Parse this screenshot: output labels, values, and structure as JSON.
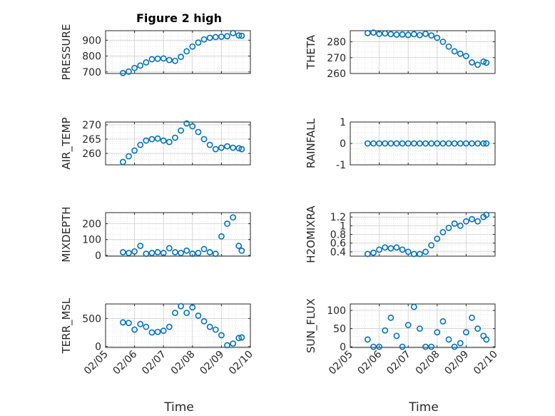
{
  "figure_title": "Figure 2 high",
  "x_axis_label": "Time",
  "x_tick_labels": [
    "02/05",
    "02/06",
    "02/07",
    "02/08",
    "02/09",
    "02/10"
  ],
  "marker_color": "#0072BD",
  "chart_data": [
    {
      "type": "scatter",
      "id": "pressure",
      "ylabel": "PRESSURE",
      "ylim": [
        690,
        960
      ],
      "yticks": [
        700,
        800,
        900
      ],
      "xlim": [
        0,
        5
      ],
      "x": [
        0.6,
        0.8,
        1.0,
        1.2,
        1.4,
        1.6,
        1.8,
        2.0,
        2.2,
        2.4,
        2.6,
        2.8,
        3.0,
        3.2,
        3.4,
        3.6,
        3.8,
        4.0,
        4.2,
        4.4,
        4.6,
        4.7
      ],
      "y": [
        693,
        702,
        725,
        740,
        760,
        780,
        783,
        785,
        775,
        770,
        795,
        830,
        860,
        885,
        905,
        915,
        920,
        922,
        925,
        945,
        930,
        928
      ]
    },
    {
      "type": "scatter",
      "id": "theta",
      "ylabel": "THETA",
      "ylim": [
        260,
        287
      ],
      "yticks": [
        260,
        270,
        280
      ],
      "xlim": [
        0,
        5
      ],
      "x": [
        0.6,
        0.8,
        1.0,
        1.2,
        1.4,
        1.6,
        1.8,
        2.0,
        2.2,
        2.4,
        2.6,
        2.8,
        3.0,
        3.2,
        3.4,
        3.6,
        3.8,
        4.0,
        4.2,
        4.4,
        4.6,
        4.7
      ],
      "y": [
        285.5,
        285.8,
        285.0,
        285.3,
        284.8,
        284.5,
        284.6,
        284.3,
        284.8,
        284.2,
        285.0,
        284.0,
        282.5,
        280.0,
        277.0,
        274.0,
        272.5,
        271.0,
        267.0,
        265.5,
        267.5,
        266.8
      ]
    },
    {
      "type": "scatter",
      "id": "air_temp",
      "ylabel": "AIR_TEMP",
      "ylim": [
        256,
        271
      ],
      "yticks": [
        260,
        265,
        270
      ],
      "xlim": [
        0,
        5
      ],
      "x": [
        0.6,
        0.8,
        1.0,
        1.2,
        1.4,
        1.6,
        1.8,
        2.0,
        2.2,
        2.4,
        2.6,
        2.8,
        3.0,
        3.2,
        3.4,
        3.6,
        3.8,
        4.0,
        4.2,
        4.4,
        4.6,
        4.7
      ],
      "y": [
        257.0,
        259.0,
        261.0,
        263.0,
        264.5,
        265.0,
        265.2,
        264.5,
        264.0,
        265.5,
        268.0,
        270.5,
        269.5,
        267.5,
        265.0,
        263.0,
        261.5,
        262.0,
        262.5,
        262.0,
        261.8,
        261.5
      ]
    },
    {
      "type": "scatter",
      "id": "rainfall",
      "ylabel": "RAINFALL",
      "ylim": [
        -1,
        1
      ],
      "yticks": [
        -1,
        0,
        1
      ],
      "xlim": [
        0,
        5
      ],
      "x": [
        0.6,
        0.8,
        1.0,
        1.2,
        1.4,
        1.6,
        1.8,
        2.0,
        2.2,
        2.4,
        2.6,
        2.8,
        3.0,
        3.2,
        3.4,
        3.6,
        3.8,
        4.0,
        4.2,
        4.4,
        4.6,
        4.7
      ],
      "y": [
        0,
        0,
        0,
        0,
        0,
        0,
        0,
        0,
        0,
        0,
        0,
        0,
        0,
        0,
        0,
        0,
        0,
        0,
        0,
        0,
        0,
        0
      ]
    },
    {
      "type": "scatter",
      "id": "mixdepth",
      "ylabel": "MIXDEPTH",
      "ylim": [
        -5,
        270
      ],
      "yticks": [
        0,
        100,
        200
      ],
      "xlim": [
        0,
        5
      ],
      "x": [
        0.6,
        0.8,
        1.0,
        1.2,
        1.4,
        1.6,
        1.8,
        2.0,
        2.2,
        2.4,
        2.6,
        2.8,
        3.0,
        3.2,
        3.4,
        3.6,
        3.8,
        4.0,
        4.2,
        4.4,
        4.6,
        4.7
      ],
      "y": [
        20,
        15,
        25,
        60,
        10,
        15,
        20,
        15,
        45,
        20,
        15,
        30,
        10,
        15,
        40,
        20,
        10,
        120,
        200,
        240,
        60,
        30
      ]
    },
    {
      "type": "scatter",
      "id": "h2omixra",
      "ylabel": "H2OMIXRA",
      "ylim": [
        0.3,
        1.3
      ],
      "yticks": [
        0.4,
        0.6,
        0.8,
        1,
        1.2
      ],
      "xlim": [
        0,
        5
      ],
      "x": [
        0.6,
        0.8,
        1.0,
        1.2,
        1.4,
        1.6,
        1.8,
        2.0,
        2.2,
        2.4,
        2.6,
        2.8,
        3.0,
        3.2,
        3.4,
        3.6,
        3.8,
        4.0,
        4.2,
        4.4,
        4.6,
        4.7
      ],
      "y": [
        0.35,
        0.38,
        0.45,
        0.5,
        0.48,
        0.5,
        0.45,
        0.4,
        0.35,
        0.35,
        0.4,
        0.55,
        0.7,
        0.85,
        0.95,
        1.05,
        1.0,
        1.1,
        1.15,
        1.1,
        1.2,
        1.25
      ]
    },
    {
      "type": "scatter",
      "id": "terr_msl",
      "ylabel": "TERR_MSL",
      "ylim": [
        -20,
        760
      ],
      "yticks": [
        0,
        500
      ],
      "xlim": [
        0,
        5
      ],
      "x": [
        0.6,
        0.8,
        1.0,
        1.2,
        1.4,
        1.6,
        1.8,
        2.0,
        2.2,
        2.4,
        2.6,
        2.8,
        3.0,
        3.2,
        3.4,
        3.6,
        3.8,
        4.0,
        4.2,
        4.4,
        4.6,
        4.7
      ],
      "y": [
        430,
        420,
        300,
        400,
        350,
        250,
        260,
        280,
        350,
        600,
        720,
        600,
        700,
        550,
        450,
        350,
        300,
        200,
        20,
        50,
        150,
        160
      ]
    },
    {
      "type": "scatter",
      "id": "sun_flux",
      "ylabel": "SUN_FLUX",
      "ylim": [
        -2,
        118
      ],
      "yticks": [
        0,
        50,
        100
      ],
      "xlim": [
        0,
        5
      ],
      "x": [
        0.6,
        0.8,
        1.0,
        1.2,
        1.4,
        1.6,
        1.8,
        2.0,
        2.2,
        2.4,
        2.6,
        2.8,
        3.0,
        3.2,
        3.4,
        3.6,
        3.8,
        4.0,
        4.2,
        4.4,
        4.6,
        4.7
      ],
      "y": [
        20,
        0,
        0,
        45,
        80,
        30,
        0,
        60,
        110,
        50,
        0,
        0,
        40,
        70,
        20,
        0,
        10,
        40,
        80,
        50,
        30,
        20
      ]
    }
  ]
}
